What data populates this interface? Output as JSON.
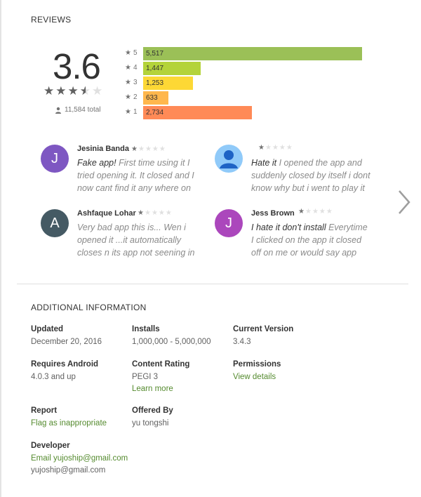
{
  "reviews_section": {
    "title": "REVIEWS",
    "score": "3.6",
    "average_stars": 3.5,
    "total": "11,584 total",
    "histogram": [
      {
        "stars": "5",
        "count": "5,517",
        "value": 5517,
        "color": "#9bc057"
      },
      {
        "stars": "4",
        "count": "1,447",
        "value": 1447,
        "color": "#b4d33a"
      },
      {
        "stars": "3",
        "count": "1,253",
        "value": 1253,
        "color": "#fdd835"
      },
      {
        "stars": "2",
        "count": "633",
        "value": 633,
        "color": "#ffb74d"
      },
      {
        "stars": "1",
        "count": "2,734",
        "value": 2734,
        "color": "#ff8a57"
      }
    ],
    "reviews": [
      {
        "name": "Jesinia Banda",
        "avatar_letter": "J",
        "avatar_color": "#7e57c2",
        "rating": 1,
        "title": "Fake app!",
        "text": " First time using it I tried opening it. It closed and I now cant find it any where on my phone"
      },
      {
        "name": "",
        "avatar_letter": "",
        "avatar_color": "#90caf9",
        "avatar_type": "person-placeholder",
        "rating": 1,
        "title": "Hate it",
        "text": " I opened the app and suddenly closed by itself i dont know why but i went to play it again"
      },
      {
        "name": "Ashfaque Lohar",
        "avatar_letter": "A",
        "avatar_color": "#455a64",
        "rating": 1,
        "title": "",
        "text": "Very bad app this is... Wen i opened it ...it automatically closes n its app not seening in the"
      },
      {
        "name": "Jess Brown",
        "avatar_letter": "J",
        "avatar_color": "#ab47bc",
        "rating": 1,
        "title": "I hate it don't install",
        "text": " Everytime I clicked on the app it closed off on me or would say app isn't in stalled"
      }
    ]
  },
  "additional": {
    "title": "ADDITIONAL INFORMATION",
    "updated": {
      "label": "Updated",
      "value": "December 20, 2016"
    },
    "installs": {
      "label": "Installs",
      "value": "1,000,000 - 5,000,000"
    },
    "current_version": {
      "label": "Current Version",
      "value": "3.4.3"
    },
    "requires_android": {
      "label": "Requires Android",
      "value": "4.0.3 and up"
    },
    "content_rating": {
      "label": "Content Rating",
      "value": "PEGI 3",
      "link": "Learn more"
    },
    "permissions": {
      "label": "Permissions",
      "link": "View details"
    },
    "report": {
      "label": "Report",
      "link": "Flag as inappropriate"
    },
    "offered_by": {
      "label": "Offered By",
      "value": "yu tongshi"
    },
    "developer": {
      "label": "Developer",
      "email_link": "Email yujoship@gmail.com",
      "email_text": "yujoship@gmail.com"
    }
  }
}
